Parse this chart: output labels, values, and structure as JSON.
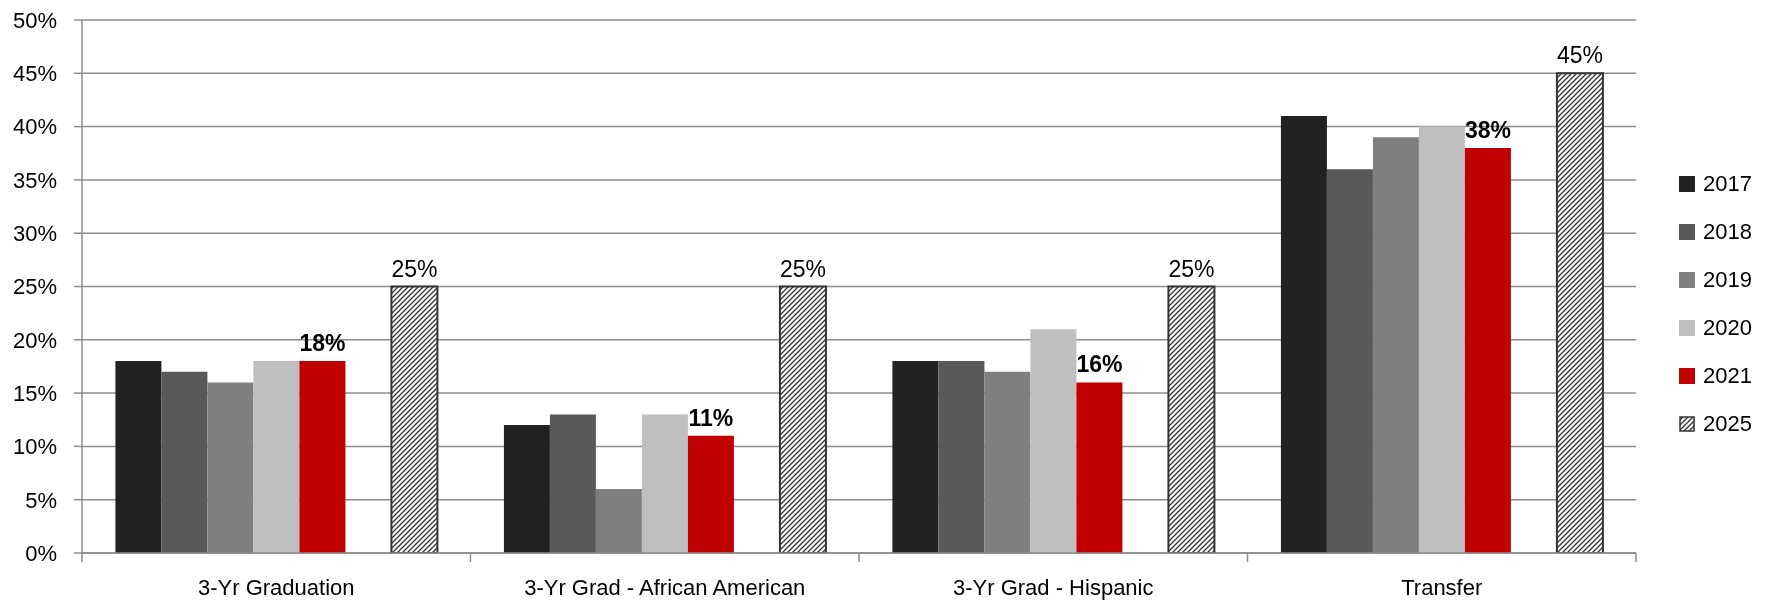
{
  "chart_data": {
    "type": "bar",
    "categories": [
      "3-Yr Graduation",
      "3-Yr Grad - African American",
      "3-Yr Grad - Hispanic",
      "Transfer"
    ],
    "series": [
      {
        "name": "2017",
        "color": "#222222",
        "values": [
          18,
          12,
          18,
          41
        ]
      },
      {
        "name": "2018",
        "color": "#595959",
        "values": [
          17,
          13,
          18,
          36
        ]
      },
      {
        "name": "2019",
        "color": "#7f7f7f",
        "values": [
          16,
          6,
          17,
          39
        ]
      },
      {
        "name": "2020",
        "color": "#bfbfbf",
        "values": [
          18,
          13,
          21,
          40
        ]
      },
      {
        "name": "2021",
        "color": "#c00000",
        "values": [
          18,
          11,
          16,
          38
        ],
        "value_labels": [
          "18%",
          "11%",
          "16%",
          "38%"
        ]
      },
      {
        "name": "2025",
        "color": "#333333",
        "values": [
          25,
          25,
          25,
          45
        ],
        "value_labels": [
          "25%",
          "25%",
          "25%",
          "45%"
        ]
      }
    ],
    "ylim": [
      0,
      50
    ],
    "yticks": [
      {
        "value": 0,
        "label": "0%"
      },
      {
        "value": 5,
        "label": "5%"
      },
      {
        "value": 10,
        "label": "10%"
      },
      {
        "value": 15,
        "label": "15%"
      },
      {
        "value": 20,
        "label": "20%"
      },
      {
        "value": 25,
        "label": "25%"
      },
      {
        "value": 30,
        "label": "30%"
      },
      {
        "value": 35,
        "label": "35%"
      },
      {
        "value": 40,
        "label": "40%"
      },
      {
        "value": 45,
        "label": "45%"
      },
      {
        "value": 50,
        "label": "50%"
      }
    ],
    "grid": "y",
    "legend": "right"
  }
}
